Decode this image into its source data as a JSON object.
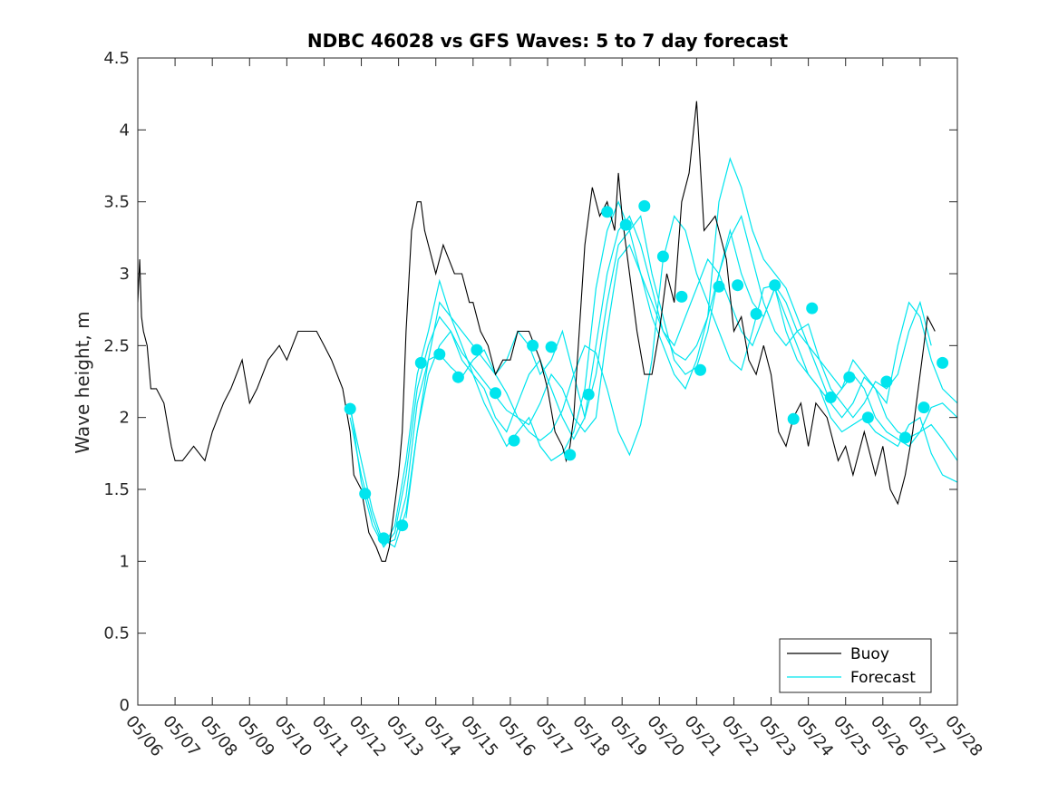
{
  "chart_data": {
    "type": "line",
    "title": "NDBC 46028 vs GFS Waves: 5 to 7 day forecast",
    "xlabel": "",
    "ylabel": "Wave height, m",
    "xlim": [
      0,
      22
    ],
    "ylim": [
      0,
      4.5
    ],
    "x_unit": "days since 05/06",
    "x_ticks": [
      0,
      1,
      2,
      3,
      4,
      5,
      6,
      7,
      8,
      9,
      10,
      11,
      12,
      13,
      14,
      15,
      16,
      17,
      18,
      19,
      20,
      21,
      22
    ],
    "x_tick_labels": [
      "05/06",
      "05/07",
      "05/08",
      "05/09",
      "05/10",
      "05/11",
      "05/12",
      "05/13",
      "05/14",
      "05/15",
      "05/16",
      "05/17",
      "05/18",
      "05/19",
      "05/20",
      "05/21",
      "05/22",
      "05/23",
      "05/24",
      "05/25",
      "05/26",
      "05/27",
      "05/28"
    ],
    "y_ticks": [
      0,
      0.5,
      1,
      1.5,
      2,
      2.5,
      3,
      3.5,
      4,
      4.5
    ],
    "y_tick_labels": [
      "0",
      "0.5",
      "1",
      "1.5",
      "2",
      "2.5",
      "3",
      "3.5",
      "4",
      "4.5"
    ],
    "grid": false,
    "legend": {
      "position": "bottom-right",
      "entries": [
        {
          "name": "Buoy",
          "color": "#000000"
        },
        {
          "name": "Forecast",
          "color": "#00e5ee"
        }
      ]
    },
    "colors": {
      "buoy": "#000000",
      "forecast": "#00e5ee",
      "marker": "#00e5ee"
    },
    "buoy": {
      "name": "Buoy",
      "x": [
        0,
        0.05,
        0.1,
        0.15,
        0.25,
        0.35,
        0.5,
        0.7,
        0.9,
        1.0,
        1.2,
        1.5,
        1.8,
        2.0,
        2.3,
        2.5,
        2.8,
        3.0,
        3.2,
        3.5,
        3.8,
        4.0,
        4.3,
        4.5,
        4.8,
        5.0,
        5.2,
        5.5,
        5.7,
        5.8,
        6.0,
        6.2,
        6.4,
        6.55,
        6.65,
        6.75,
        6.85,
        7.0,
        7.1,
        7.2,
        7.35,
        7.5,
        7.6,
        7.7,
        7.8,
        8.0,
        8.2,
        8.5,
        8.7,
        8.9,
        9.0,
        9.2,
        9.4,
        9.6,
        9.8,
        10.0,
        10.2,
        10.5,
        10.8,
        11.0,
        11.2,
        11.4,
        11.5,
        11.6,
        11.7,
        11.8,
        11.9,
        12.0,
        12.2,
        12.4,
        12.6,
        12.8,
        12.9,
        13.0,
        13.2,
        13.4,
        13.6,
        13.8,
        14.0,
        14.2,
        14.4,
        14.6,
        14.8,
        15.0,
        15.2,
        15.5,
        15.8,
        16.0,
        16.2,
        16.4,
        16.6,
        16.8,
        17.0,
        17.2,
        17.4,
        17.6,
        17.8,
        18.0,
        18.2,
        18.5,
        18.8,
        19.0,
        19.2,
        19.5,
        19.8,
        20.0,
        20.2,
        20.4,
        20.6,
        20.8,
        20.9,
        21.0,
        21.2,
        21.4
      ],
      "y": [
        2.8,
        3.1,
        2.7,
        2.6,
        2.5,
        2.2,
        2.2,
        2.1,
        1.8,
        1.7,
        1.7,
        1.8,
        1.7,
        1.9,
        2.1,
        2.2,
        2.4,
        2.1,
        2.2,
        2.4,
        2.5,
        2.4,
        2.6,
        2.6,
        2.6,
        2.5,
        2.4,
        2.2,
        1.9,
        1.6,
        1.5,
        1.2,
        1.1,
        1.0,
        1.0,
        1.1,
        1.3,
        1.6,
        1.9,
        2.6,
        3.3,
        3.5,
        3.5,
        3.3,
        3.2,
        3.0,
        3.2,
        3.0,
        3.0,
        2.8,
        2.8,
        2.6,
        2.5,
        2.3,
        2.4,
        2.4,
        2.6,
        2.6,
        2.4,
        2.2,
        1.9,
        1.8,
        1.7,
        1.8,
        2.0,
        2.4,
        2.8,
        3.2,
        3.6,
        3.4,
        3.5,
        3.3,
        3.7,
        3.4,
        3.0,
        2.6,
        2.3,
        2.3,
        2.6,
        3.0,
        2.8,
        3.5,
        3.7,
        4.2,
        3.3,
        3.4,
        3.1,
        2.6,
        2.7,
        2.4,
        2.3,
        2.5,
        2.3,
        1.9,
        1.8,
        2.0,
        2.1,
        1.8,
        2.1,
        2.0,
        1.7,
        1.8,
        1.6,
        1.9,
        1.6,
        1.8,
        1.5,
        1.4,
        1.6,
        1.9,
        2.1,
        2.3,
        2.7,
        2.6
      ]
    },
    "forecast_markers": {
      "x": [
        5.7,
        6.1,
        6.6,
        7.1,
        7.6,
        8.1,
        8.6,
        9.1,
        9.6,
        10.1,
        10.6,
        11.1,
        11.6,
        12.1,
        12.6,
        13.1,
        13.6,
        14.1,
        14.6,
        15.1,
        15.6,
        16.1,
        16.6,
        17.1,
        17.6,
        18.1,
        18.6,
        19.1,
        19.6,
        20.1,
        20.6,
        21.1,
        21.6
      ],
      "y": [
        2.06,
        1.47,
        1.16,
        1.25,
        2.38,
        2.44,
        2.28,
        2.47,
        2.17,
        1.84,
        2.5,
        2.49,
        1.74,
        2.16,
        3.43,
        3.34,
        3.47,
        3.12,
        2.84,
        2.33,
        2.91,
        2.92,
        2.72,
        2.92,
        1.99,
        2.76,
        2.14,
        2.28,
        2.0,
        2.25,
        1.86,
        2.07,
        2.38
      ]
    },
    "forecast_series": [
      {
        "x": [
          5.7,
          6.0,
          6.3,
          6.6,
          6.9,
          7.2,
          7.5,
          7.8,
          8.1,
          8.4,
          8.7,
          9.0,
          9.3,
          9.6,
          9.9,
          10.2,
          10.5,
          10.8,
          11.1,
          11.4,
          11.7,
          12.0,
          12.3,
          12.6,
          12.9,
          13.2,
          13.5,
          13.8,
          14.1,
          14.4,
          14.7,
          15.0,
          15.3,
          15.6,
          15.9,
          16.2,
          16.5,
          16.8,
          17.1,
          17.4,
          17.7,
          18.0,
          18.3,
          18.6,
          18.9,
          19.2,
          19.5,
          19.8,
          20.1,
          20.4,
          20.7,
          21.0,
          21.3,
          21.6,
          22.0
        ],
        "y": [
          2.06,
          1.7,
          1.35,
          1.12,
          1.15,
          1.45,
          2.1,
          2.4,
          2.44,
          2.35,
          2.28,
          2.4,
          2.47,
          2.3,
          2.17,
          2.0,
          1.9,
          1.84,
          1.9,
          2.05,
          2.3,
          2.5,
          2.45,
          2.2,
          1.9,
          1.74,
          1.95,
          2.4,
          3.1,
          3.4,
          3.3,
          3.0,
          2.8,
          2.6,
          2.4,
          2.33,
          2.6,
          2.9,
          2.92,
          2.8,
          2.6,
          2.5,
          2.3,
          2.1,
          2.0,
          2.1,
          2.28,
          2.2,
          2.0,
          1.9,
          1.86,
          1.9,
          2.07,
          2.1,
          2.0
        ]
      },
      {
        "x": [
          5.7,
          6.0,
          6.3,
          6.6,
          6.9,
          7.2,
          7.5,
          7.8,
          8.1,
          8.4,
          8.7,
          9.0,
          9.3,
          9.6,
          9.9,
          10.2,
          10.5,
          10.8,
          11.1,
          11.4,
          11.7,
          12.0,
          12.3,
          12.6,
          12.9,
          13.2,
          13.5,
          13.8,
          14.1,
          14.4,
          14.7,
          15.0,
          15.3,
          15.6,
          15.9,
          16.2,
          16.5,
          16.8,
          17.1,
          17.4,
          17.7,
          18.0,
          18.3,
          18.6,
          18.9,
          19.2,
          19.5,
          19.8,
          20.1,
          20.4,
          20.7,
          21.0,
          21.3,
          21.6,
          22.0
        ],
        "y": [
          2.0,
          1.6,
          1.3,
          1.1,
          1.2,
          1.6,
          2.2,
          2.5,
          2.7,
          2.6,
          2.4,
          2.3,
          2.2,
          2.0,
          1.9,
          2.1,
          2.3,
          2.4,
          2.2,
          2.0,
          1.85,
          2.0,
          2.5,
          3.0,
          3.3,
          3.4,
          3.2,
          2.9,
          2.6,
          2.5,
          2.7,
          2.9,
          3.1,
          3.0,
          2.8,
          2.6,
          2.5,
          2.7,
          2.9,
          2.7,
          2.5,
          2.3,
          2.2,
          2.1,
          2.2,
          2.3,
          2.2,
          2.0,
          1.9,
          1.85,
          1.8,
          1.9,
          1.95,
          1.85,
          1.7
        ]
      },
      {
        "x": [
          5.7,
          6.0,
          6.3,
          6.6,
          6.9,
          7.2,
          7.5,
          7.8,
          8.1,
          8.4,
          8.7,
          9.0,
          9.3,
          9.6,
          9.9,
          10.2,
          10.5,
          10.8,
          11.1,
          11.4,
          11.7,
          12.0,
          12.3,
          12.6,
          12.9,
          13.2,
          13.5,
          13.8,
          14.1,
          14.4,
          14.7,
          15.0,
          15.3,
          15.6,
          15.9,
          16.2,
          16.5,
          16.8,
          17.1,
          17.4,
          17.7,
          18.0,
          18.3,
          18.6,
          18.9,
          19.2,
          19.5,
          19.8,
          20.1,
          20.4,
          20.7,
          21.0,
          21.3,
          21.6,
          22.0
        ],
        "y": [
          2.1,
          1.55,
          1.25,
          1.1,
          1.25,
          1.7,
          2.3,
          2.6,
          2.95,
          2.7,
          2.5,
          2.3,
          2.1,
          1.95,
          1.8,
          1.9,
          2.0,
          1.8,
          1.7,
          1.75,
          1.9,
          2.2,
          2.9,
          3.3,
          3.5,
          3.3,
          3.0,
          2.7,
          2.5,
          2.3,
          2.2,
          2.4,
          2.7,
          3.5,
          3.8,
          3.6,
          3.3,
          3.1,
          3.0,
          2.9,
          2.7,
          2.5,
          2.4,
          2.3,
          2.2,
          2.4,
          2.3,
          2.2,
          2.1,
          2.5,
          2.8,
          2.7,
          2.4,
          2.2,
          2.1
        ]
      },
      {
        "x": [
          7.2,
          7.5,
          7.8,
          8.1,
          8.4,
          8.7,
          9.0,
          9.3,
          9.6,
          9.9,
          10.2,
          10.5,
          10.8,
          11.1,
          11.4,
          11.7,
          12.0,
          12.3,
          12.6,
          12.9,
          13.2,
          13.5,
          13.8,
          14.1,
          14.4,
          14.7,
          15.0,
          15.3,
          15.6,
          15.9,
          16.2,
          16.5,
          16.8,
          17.1,
          17.4,
          17.7,
          18.0,
          18.3,
          18.6,
          18.9,
          19.2,
          19.5,
          19.8,
          20.1,
          20.4,
          20.7,
          21.0,
          21.3,
          21.6,
          22.0
        ],
        "y": [
          1.3,
          1.9,
          2.4,
          2.8,
          2.7,
          2.6,
          2.5,
          2.4,
          2.3,
          2.4,
          2.6,
          2.5,
          2.3,
          2.4,
          2.6,
          2.3,
          2.0,
          2.3,
          2.8,
          3.2,
          3.3,
          3.4,
          3.0,
          2.7,
          2.4,
          2.3,
          2.35,
          2.6,
          3.0,
          3.3,
          3.0,
          2.8,
          2.7,
          2.9,
          2.6,
          2.4,
          2.3,
          2.2,
          2.0,
          1.9,
          1.95,
          2.0,
          1.9,
          1.85,
          1.8,
          1.95,
          2.0,
          1.75,
          1.6,
          1.55
        ]
      },
      {
        "x": [
          6.6,
          6.9,
          7.2,
          7.5,
          7.8,
          8.1,
          8.4,
          8.7,
          9.0,
          9.3,
          9.6,
          9.9,
          10.2,
          10.5,
          10.8,
          11.1,
          11.4,
          11.7,
          12.0,
          12.3,
          12.6,
          12.9,
          13.2,
          13.5,
          13.8,
          14.1,
          14.4,
          14.7,
          15.0,
          15.3,
          15.6,
          15.9,
          16.2,
          16.5,
          16.8,
          17.1,
          17.4,
          17.7,
          18.0,
          18.3,
          18.6,
          18.9,
          19.2,
          19.5,
          19.8,
          20.1,
          20.4,
          20.7,
          21.0,
          21.3
        ],
        "y": [
          1.15,
          1.1,
          1.35,
          1.9,
          2.3,
          2.5,
          2.6,
          2.45,
          2.35,
          2.25,
          2.15,
          2.05,
          2.0,
          1.95,
          2.1,
          2.3,
          2.2,
          2.0,
          1.9,
          2.0,
          2.6,
          3.1,
          3.2,
          3.0,
          2.8,
          2.6,
          2.45,
          2.4,
          2.5,
          2.7,
          3.0,
          3.25,
          3.4,
          3.1,
          2.8,
          2.6,
          2.5,
          2.6,
          2.65,
          2.4,
          2.2,
          2.1,
          2.0,
          2.1,
          2.25,
          2.2,
          2.3,
          2.6,
          2.8,
          2.5
        ]
      }
    ]
  }
}
